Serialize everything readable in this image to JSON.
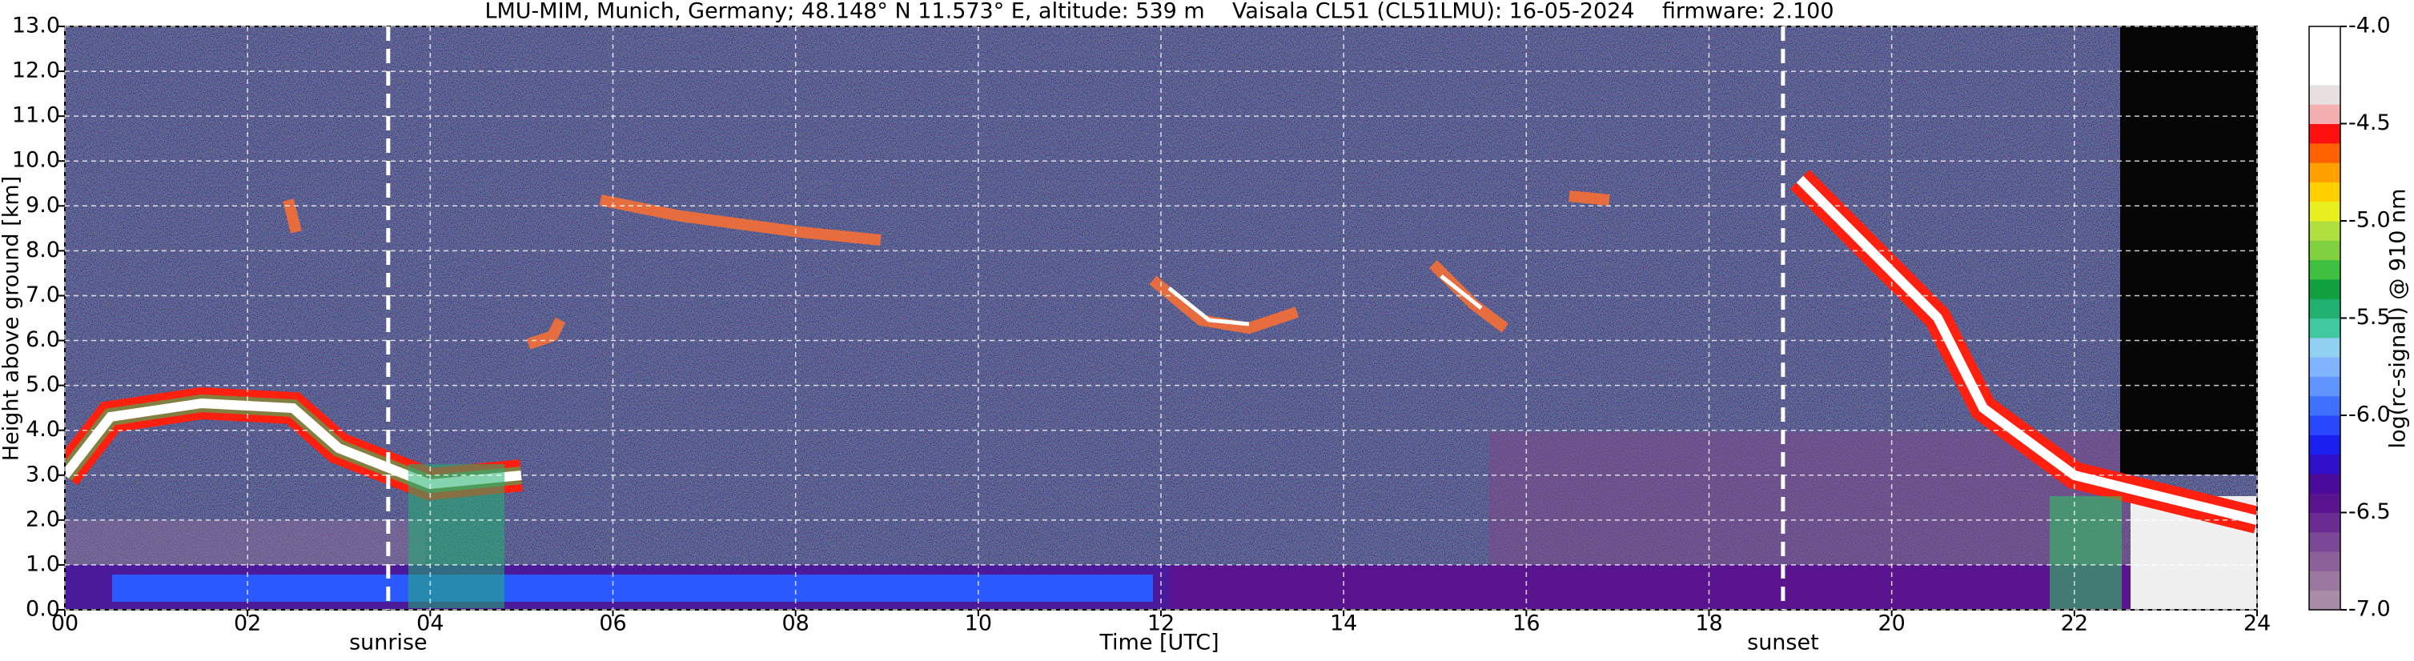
{
  "chart_data": {
    "type": "heatmap",
    "title": "LMU-MIM, Munich, Germany; 48.148° N 11.573° E, altitude: 539 m    Vaisala CL51 (CL51LMU): 16-05-2024    firmware: 2.100",
    "x_label": "Time [UTC]",
    "y_label": "Height above ground [km]",
    "xlim": [
      0,
      24
    ],
    "xticks": [
      {
        "value": 0,
        "label": "00"
      },
      {
        "value": 2,
        "label": "02"
      },
      {
        "value": 4,
        "label": "04"
      },
      {
        "value": 6,
        "label": "06"
      },
      {
        "value": 8,
        "label": "08"
      },
      {
        "value": 10,
        "label": "10"
      },
      {
        "value": 12,
        "label": "12"
      },
      {
        "value": 14,
        "label": "14"
      },
      {
        "value": 16,
        "label": "16"
      },
      {
        "value": 18,
        "label": "18"
      },
      {
        "value": 20,
        "label": "20"
      },
      {
        "value": 22,
        "label": "22"
      },
      {
        "value": 24,
        "label": "24"
      }
    ],
    "ylim": [
      0,
      13
    ],
    "yticks": [
      {
        "value": 0,
        "label": "0.0"
      },
      {
        "value": 1,
        "label": "1.0"
      },
      {
        "value": 2,
        "label": "2.0"
      },
      {
        "value": 3,
        "label": "3.0"
      },
      {
        "value": 4,
        "label": "4.0"
      },
      {
        "value": 5,
        "label": "5.0"
      },
      {
        "value": 6,
        "label": "6.0"
      },
      {
        "value": 7,
        "label": "7.0"
      },
      {
        "value": 8,
        "label": "8.0"
      },
      {
        "value": 9,
        "label": "9.0"
      },
      {
        "value": 10,
        "label": "10.0"
      },
      {
        "value": 11,
        "label": "11.0"
      },
      {
        "value": 12,
        "label": "12.0"
      },
      {
        "value": 13,
        "label": "13.0"
      }
    ],
    "grid": true,
    "annotations": [
      {
        "text": "sunrise",
        "x": 3.54
      },
      {
        "text": "sunset",
        "x": 18.81
      }
    ],
    "colorbar": {
      "label": "log(rc-signal) @ 910 nm",
      "lim": [
        -7,
        -4
      ],
      "ticks": [
        {
          "value": -4,
          "label": "-4.0"
        },
        -4.5,
        {
          "value": -5,
          "label": "-5.0"
        },
        -5.5,
        {
          "value": -6,
          "label": "-6.0"
        },
        -6.5,
        {
          "value": -7,
          "label": "-7.0"
        }
      ],
      "colors": [
        "#a88ca8",
        "#9a78a0",
        "#8c6098",
        "#7a4896",
        "#6a2c92",
        "#5a1490",
        "#4a0a9a",
        "#3010c8",
        "#1a20f0",
        "#2848ff",
        "#4070ff",
        "#6094ff",
        "#80b4ff",
        "#90d0f0",
        "#40c8a0",
        "#20b070",
        "#10a040",
        "#40c040",
        "#80d040",
        "#b0e040",
        "#e8f020",
        "#ffd000",
        "#ffa000",
        "#ff6000",
        "#ff1010",
        "#f4b0b0",
        "#e8e0e0",
        "#ffffff",
        "#ffffff",
        "#ffffff"
      ]
    }
  }
}
